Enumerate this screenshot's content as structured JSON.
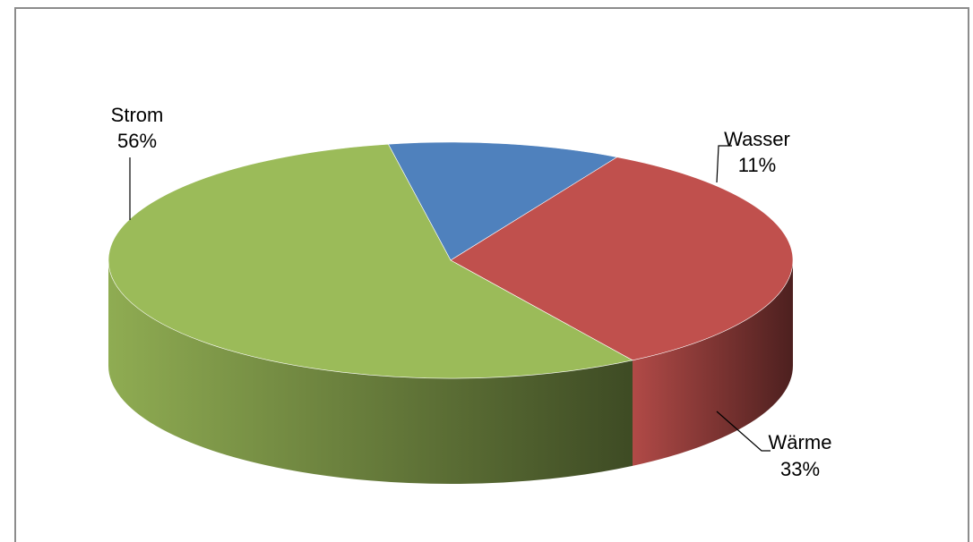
{
  "chart_data": {
    "type": "pie",
    "style": "3d",
    "legend": "none",
    "slices": [
      {
        "label": "Strom",
        "value": 56,
        "percent_label": "56%",
        "color": "#9BBB59"
      },
      {
        "label": "Wasser",
        "value": 11,
        "percent_label": "11%",
        "color": "#4F81BD"
      },
      {
        "label": "Wärme",
        "value": 33,
        "percent_label": "33%",
        "color": "#C0504D"
      }
    ]
  }
}
